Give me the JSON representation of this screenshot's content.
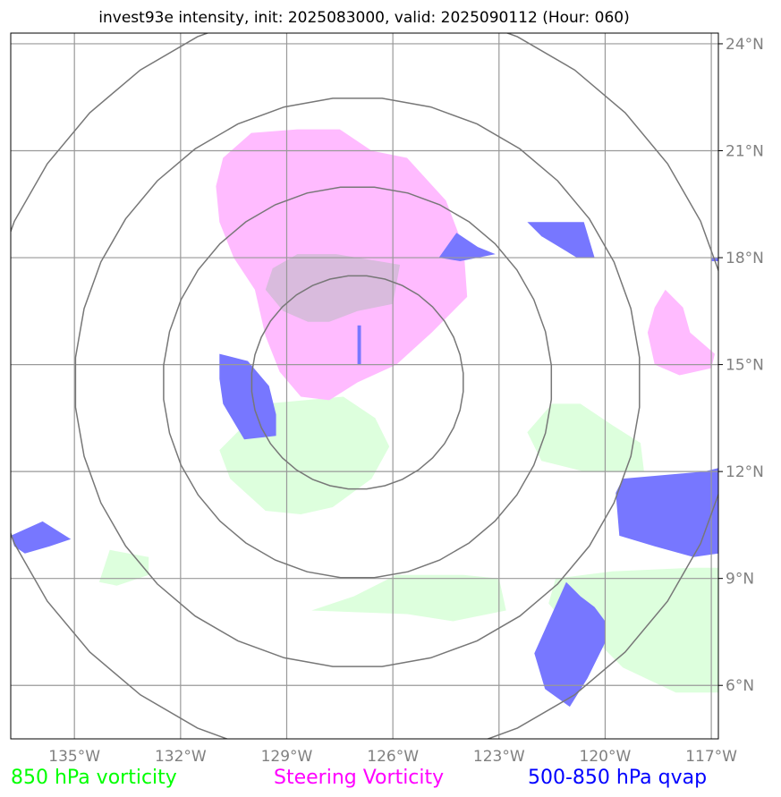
{
  "chart_data": {
    "type": "map",
    "title": "invest93e intensity, init: 2025083000, valid: 2025090112 (Hour: 060)",
    "x_ticks": [
      "135°W",
      "132°W",
      "129°W",
      "126°W",
      "123°W",
      "120°W",
      "117°W"
    ],
    "y_ticks": [
      "24°N",
      "21°N",
      "18°N",
      "15°N",
      "12°N",
      "9°N",
      "6°N"
    ],
    "lon_range": [
      -136.8,
      -116.8
    ],
    "lat_range": [
      4.5,
      24.3
    ],
    "center": {
      "lon": -127.0,
      "lat": 14.5
    },
    "range_rings_deg": [
      3,
      5.5,
      8,
      10.7
    ],
    "legend": [
      {
        "label": "850 hPa vorticity",
        "color": "#00ff00"
      },
      {
        "label": "Steering Vorticity",
        "color": "#ff00ff"
      },
      {
        "label": "500-850 hPa qvap",
        "color": "#0000ff"
      }
    ],
    "colors": {
      "vort850": "#ddffdd",
      "steering": "#ffbbff",
      "qvap": "#7777ff",
      "overlap": "#d9bbdd"
    },
    "fields": {
      "vort850": [
        [
          [
            -129.6,
            13.9
          ],
          [
            -127.4,
            14.1
          ],
          [
            -126.5,
            13.5
          ],
          [
            -126.1,
            12.7
          ],
          [
            -126.6,
            11.8
          ],
          [
            -127.7,
            11.0
          ],
          [
            -128.6,
            10.8
          ],
          [
            -129.6,
            10.9
          ],
          [
            -130.6,
            11.8
          ],
          [
            -130.9,
            12.6
          ]
        ],
        [
          [
            -121.5,
            13.9
          ],
          [
            -120.7,
            13.9
          ],
          [
            -119.8,
            13.3
          ],
          [
            -119.0,
            12.8
          ],
          [
            -118.9,
            12.0
          ],
          [
            -120.6,
            12.0
          ],
          [
            -121.8,
            12.3
          ],
          [
            -122.2,
            13.1
          ]
        ],
        [
          [
            -134.0,
            9.8
          ],
          [
            -132.9,
            9.6
          ],
          [
            -132.9,
            9.1
          ],
          [
            -133.8,
            8.8
          ],
          [
            -134.3,
            8.9
          ]
        ],
        [
          [
            -125.9,
            9.1
          ],
          [
            -124.0,
            9.1
          ],
          [
            -123.0,
            9.0
          ],
          [
            -122.8,
            8.1
          ],
          [
            -124.3,
            7.8
          ],
          [
            -125.6,
            8.0
          ],
          [
            -128.3,
            8.1
          ],
          [
            -127.1,
            8.5
          ]
        ],
        [
          [
            -121.4,
            9.0
          ],
          [
            -119.8,
            9.2
          ],
          [
            -117.5,
            9.3
          ],
          [
            -116.8,
            9.3
          ],
          [
            -116.8,
            5.8
          ],
          [
            -118.0,
            5.8
          ],
          [
            -119.5,
            6.5
          ],
          [
            -120.2,
            7.2
          ],
          [
            -121.0,
            7.6
          ],
          [
            -121.6,
            8.3
          ]
        ]
      ],
      "steering": [
        [
          [
            -127.5,
            21.6
          ],
          [
            -126.6,
            21.0
          ],
          [
            -125.6,
            20.8
          ],
          [
            -124.5,
            19.6
          ],
          [
            -124.0,
            18.3
          ],
          [
            -123.9,
            16.9
          ],
          [
            -124.9,
            15.9
          ],
          [
            -125.9,
            15.0
          ],
          [
            -127.0,
            14.5
          ],
          [
            -127.8,
            14.0
          ],
          [
            -128.6,
            14.1
          ],
          [
            -129.2,
            14.8
          ],
          [
            -129.6,
            15.8
          ],
          [
            -129.9,
            17.1
          ],
          [
            -130.5,
            18.0
          ],
          [
            -130.9,
            19.0
          ],
          [
            -131.0,
            20.0
          ],
          [
            -130.8,
            20.8
          ],
          [
            -130.0,
            21.5
          ],
          [
            -128.7,
            21.6
          ]
        ],
        [
          [
            -118.3,
            17.1
          ],
          [
            -117.8,
            16.6
          ],
          [
            -117.6,
            15.9
          ],
          [
            -116.9,
            15.3
          ],
          [
            -117.0,
            14.9
          ],
          [
            -117.9,
            14.7
          ],
          [
            -118.6,
            15.0
          ],
          [
            -118.8,
            15.9
          ],
          [
            -118.6,
            16.6
          ]
        ]
      ],
      "steering_qvap_overlap": [
        [
          [
            -128.7,
            18.1
          ],
          [
            -127.6,
            18.1
          ],
          [
            -126.4,
            17.9
          ],
          [
            -125.8,
            17.8
          ],
          [
            -126.0,
            16.7
          ],
          [
            -127.0,
            16.5
          ],
          [
            -127.8,
            16.2
          ],
          [
            -128.4,
            16.2
          ],
          [
            -129.1,
            16.5
          ],
          [
            -129.6,
            17.1
          ],
          [
            -129.4,
            17.7
          ]
        ]
      ],
      "qvap": [
        [
          [
            -130.9,
            15.3
          ],
          [
            -130.1,
            15.1
          ],
          [
            -129.5,
            14.4
          ],
          [
            -129.3,
            13.6
          ],
          [
            -129.3,
            13.0
          ],
          [
            -130.2,
            12.9
          ],
          [
            -130.8,
            13.9
          ],
          [
            -130.9,
            14.6
          ]
        ],
        [
          [
            -121.2,
            19.0
          ],
          [
            -120.6,
            19.0
          ],
          [
            -120.3,
            18.0
          ],
          [
            -120.8,
            18.0
          ],
          [
            -121.8,
            18.6
          ],
          [
            -122.2,
            19.0
          ]
        ],
        [
          [
            -124.2,
            18.7
          ],
          [
            -123.6,
            18.3
          ],
          [
            -123.1,
            18.1
          ],
          [
            -124.1,
            17.9
          ],
          [
            -124.7,
            18.0
          ]
        ],
        [
          [
            -127.0,
            16.1
          ],
          [
            -126.9,
            16.1
          ],
          [
            -126.9,
            15.0
          ],
          [
            -127.0,
            15.0
          ]
        ],
        [
          [
            -117.2,
            12.0
          ],
          [
            -116.8,
            12.1
          ],
          [
            -116.8,
            9.7
          ],
          [
            -117.5,
            9.6
          ],
          [
            -118.6,
            9.9
          ],
          [
            -119.6,
            10.2
          ],
          [
            -119.7,
            11.4
          ],
          [
            -119.5,
            11.8
          ]
        ],
        [
          [
            -135.9,
            10.6
          ],
          [
            -135.1,
            10.1
          ],
          [
            -135.7,
            9.9
          ],
          [
            -136.4,
            9.7
          ],
          [
            -136.7,
            9.9
          ],
          [
            -136.8,
            10.2
          ]
        ],
        [
          [
            -121.1,
            8.9
          ],
          [
            -120.7,
            8.5
          ],
          [
            -120.3,
            8.2
          ],
          [
            -120.0,
            7.8
          ],
          [
            -120.0,
            7.2
          ],
          [
            -120.5,
            6.2
          ],
          [
            -121.0,
            5.4
          ],
          [
            -121.7,
            5.9
          ],
          [
            -122.0,
            6.9
          ]
        ],
        [
          [
            -117.0,
            18.0
          ],
          [
            -116.8,
            18.0
          ],
          [
            -116.8,
            17.9
          ],
          [
            -117.0,
            17.9
          ]
        ]
      ]
    }
  }
}
